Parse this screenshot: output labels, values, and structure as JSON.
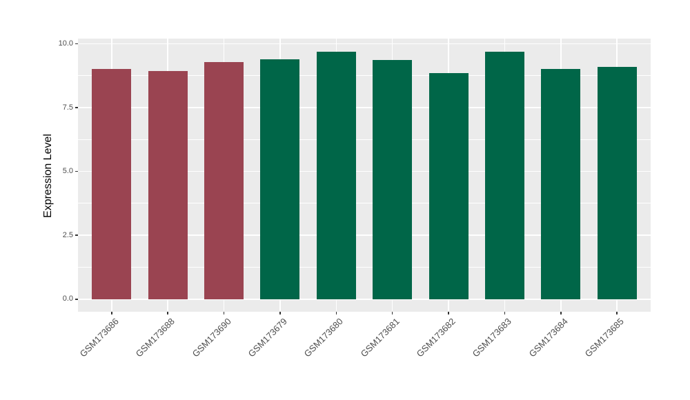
{
  "chart_data": {
    "type": "bar",
    "title": "",
    "xlabel": "",
    "ylabel": "Expression Level",
    "categories": [
      "GSM173686",
      "GSM173688",
      "GSM173690",
      "GSM173679",
      "GSM173680",
      "GSM173681",
      "GSM173682",
      "GSM173683",
      "GSM173684",
      "GSM173685"
    ],
    "values": [
      9.0,
      8.92,
      9.29,
      9.38,
      9.7,
      9.37,
      8.84,
      9.69,
      9.02,
      9.08
    ],
    "bar_colors": [
      "#9A4451",
      "#9A4451",
      "#9A4451",
      "#006648",
      "#006648",
      "#006648",
      "#006648",
      "#006648",
      "#006648",
      "#006648"
    ],
    "ylim": [
      0,
      10.0
    ],
    "yticks": [
      0.0,
      2.5,
      5.0,
      7.5,
      10.0
    ],
    "ytick_labels": [
      "0.0",
      "2.5",
      "5.0",
      "7.5",
      "10.0"
    ],
    "yticks_minor": [
      1.25,
      3.75,
      6.25,
      8.75
    ],
    "grid": true,
    "legend": "none",
    "panel_background": "#EBEBEB",
    "grid_color": "#FFFFFF",
    "x_label_angle": 45
  }
}
